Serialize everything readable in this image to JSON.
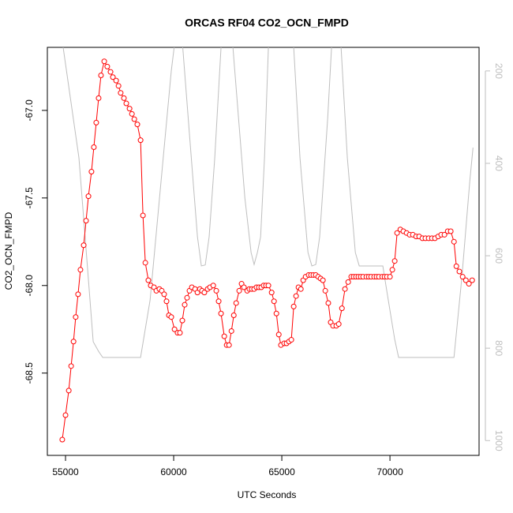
{
  "chart_data": {
    "type": "line",
    "title": "ORCAS RF04 CO2_OCN_FMPD",
    "xlabel": "UTC Seconds",
    "ylabel": "CO2_OCN_FMPD",
    "xlim": [
      54160,
      74120
    ],
    "ylim": [
      -68.97,
      -66.64
    ],
    "y2lim": [
      1032,
      149
    ],
    "xticks": [
      55000,
      60000,
      65000,
      70000
    ],
    "yticks": [
      {
        "value": -67.0,
        "label": "-67.0"
      },
      {
        "value": -67.5,
        "label": "-67.5"
      },
      {
        "value": -68.0,
        "label": "-68.0"
      },
      {
        "value": -68.5,
        "label": "-68.5"
      }
    ],
    "y2ticks": [
      200,
      400,
      600,
      800,
      1000
    ],
    "y2_color": "#bebebe",
    "series": [
      {
        "color": "#ff0000",
        "markers": true,
        "x": [
          54850,
          55000,
          55150,
          55260,
          55370,
          55470,
          55580,
          55690,
          55840,
          55950,
          56060,
          56200,
          56310,
          56420,
          56530,
          56640,
          56790,
          56930,
          57080,
          57190,
          57340,
          57450,
          57550,
          57700,
          57810,
          57960,
          58070,
          58180,
          58320,
          58470,
          58580,
          58690,
          58830,
          58940,
          59090,
          59200,
          59340,
          59450,
          59560,
          59670,
          59780,
          59890,
          60040,
          60180,
          60290,
          60400,
          60510,
          60620,
          60730,
          60840,
          60990,
          61100,
          61210,
          61310,
          61420,
          61570,
          61680,
          61830,
          61970,
          62080,
          62190,
          62340,
          62450,
          62560,
          62670,
          62780,
          62890,
          63030,
          63140,
          63250,
          63400,
          63500,
          63610,
          63720,
          63830,
          63940,
          64050,
          64160,
          64270,
          64380,
          64530,
          64640,
          64750,
          64860,
          64960,
          65110,
          65220,
          65330,
          65440,
          65550,
          65660,
          65770,
          65880,
          65990,
          66100,
          66240,
          66350,
          66460,
          66570,
          66680,
          66790,
          66900,
          67010,
          67150,
          67260,
          67370,
          67520,
          67630,
          67780,
          67920,
          68070,
          68210,
          68320,
          68430,
          68540,
          68650,
          68760,
          68910,
          69020,
          69130,
          69270,
          69380,
          69490,
          69640,
          69750,
          69860,
          70000,
          70110,
          70220,
          70330,
          70480,
          70620,
          70770,
          70910,
          71060,
          71210,
          71350,
          71500,
          71640,
          71790,
          71940,
          72080,
          72230,
          72370,
          72520,
          72670,
          72810,
          72960,
          73070,
          73210,
          73360,
          73510,
          73650,
          73800
        ],
        "values": [
          -68.88,
          -68.74,
          -68.6,
          -68.46,
          -68.32,
          -68.18,
          -68.05,
          -67.91,
          -67.77,
          -67.63,
          -67.49,
          -67.35,
          -67.21,
          -67.07,
          -66.93,
          -66.8,
          -66.72,
          -66.75,
          -66.78,
          -66.81,
          -66.83,
          -66.86,
          -66.9,
          -66.93,
          -66.96,
          -66.99,
          -67.02,
          -67.05,
          -67.08,
          -67.17,
          -67.6,
          -67.87,
          -67.97,
          -68.0,
          -68.01,
          -68.03,
          -68.02,
          -68.03,
          -68.05,
          -68.09,
          -68.17,
          -68.18,
          -68.25,
          -68.27,
          -68.27,
          -68.2,
          -68.11,
          -68.07,
          -68.03,
          -68.01,
          -68.02,
          -68.04,
          -68.02,
          -68.03,
          -68.04,
          -68.02,
          -68.01,
          -68.0,
          -68.03,
          -68.09,
          -68.16,
          -68.29,
          -68.34,
          -68.34,
          -68.26,
          -68.17,
          -68.1,
          -68.03,
          -67.99,
          -68.01,
          -68.03,
          -68.02,
          -68.02,
          -68.02,
          -68.01,
          -68.01,
          -68.01,
          -68.0,
          -68.0,
          -68.0,
          -68.04,
          -68.09,
          -68.16,
          -68.28,
          -68.34,
          -68.33,
          -68.33,
          -68.32,
          -68.31,
          -68.12,
          -68.06,
          -68.01,
          -68.02,
          -67.97,
          -67.95,
          -67.94,
          -67.94,
          -67.94,
          -67.94,
          -67.95,
          -67.96,
          -67.97,
          -68.03,
          -68.1,
          -68.21,
          -68.23,
          -68.23,
          -68.22,
          -68.13,
          -68.02,
          -67.98,
          -67.95,
          -67.95,
          -67.95,
          -67.95,
          -67.95,
          -67.95,
          -67.95,
          -67.95,
          -67.95,
          -67.95,
          -67.95,
          -67.95,
          -67.95,
          -67.95,
          -67.95,
          -67.95,
          -67.91,
          -67.86,
          -67.7,
          -67.68,
          -67.69,
          -67.7,
          -67.71,
          -67.71,
          -67.72,
          -67.72,
          -67.73,
          -67.73,
          -67.73,
          -67.73,
          -67.73,
          -67.72,
          -67.71,
          -67.71,
          -67.69,
          -67.69,
          -67.75,
          -67.89,
          -67.92,
          -67.95,
          -67.97,
          -67.99,
          -67.97
        ]
      },
      {
        "color": "#bebebe",
        "axis": "y2",
        "markers": false,
        "x": [
          54890,
          55620,
          55990,
          56280,
          56530,
          56720,
          58470,
          58910,
          59450,
          59890,
          60150,
          60420,
          60730,
          61100,
          61280,
          61460,
          61640,
          61900,
          62190,
          62450,
          62740,
          63290,
          63580,
          63720,
          63870,
          64020,
          64200,
          64380,
          64960,
          65550,
          65840,
          66210,
          66390,
          66570,
          66750,
          67120,
          67300,
          67520,
          67740,
          68030,
          68400,
          68580,
          69670,
          69860,
          70220,
          70400,
          72960,
          73330,
          73690,
          73840
        ],
        "values": [
          149,
          388,
          610,
          786,
          807,
          820,
          820,
          696,
          422,
          200,
          100,
          149,
          337,
          559,
          622,
          620,
          559,
          388,
          149,
          100,
          149,
          474,
          593,
          619,
          593,
          559,
          388,
          149,
          100,
          149,
          388,
          593,
          622,
          619,
          559,
          303,
          149,
          100,
          149,
          388,
          593,
          622,
          622,
          678,
          781,
          820,
          820,
          644,
          439,
          366
        ]
      }
    ]
  }
}
